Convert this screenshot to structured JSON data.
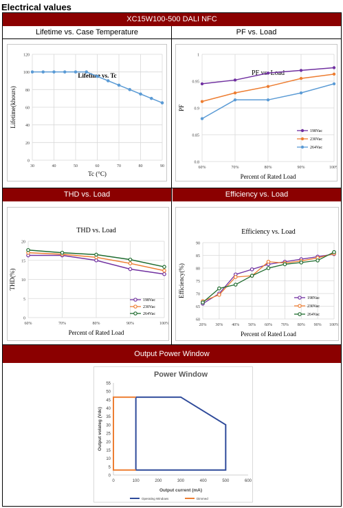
{
  "page": {
    "heading": "Electrical values",
    "product_bar": "XC15W100-500 DALI NFC",
    "sections": {
      "lifetime": "Lifetime vs. Case Temperature",
      "pf": "PF vs. Load",
      "thd": "THD vs. Load",
      "efficiency": "Efficiency vs. Load",
      "power_window": "Output Power Window"
    }
  },
  "colors": {
    "bar": "#8b0000",
    "v198": "#7030a0",
    "v230": "#ed7d31",
    "v264": "#5b9bd5",
    "v264_dark": "#1e6b2e",
    "blue": "#5b9bd5",
    "navy": "#2e4a9a"
  },
  "chart_data": [
    {
      "id": "lifetime",
      "type": "line",
      "title": "Lifetime vs. Tc",
      "xlabel": "Tc (°C)",
      "ylabel": "Lifetime(khours)",
      "xlim": [
        30,
        90
      ],
      "ylim": [
        0,
        120
      ],
      "x_ticks": [
        "30",
        "40",
        "50",
        "60",
        "70",
        "80",
        "90"
      ],
      "y_ticks": [
        "0",
        "20",
        "40",
        "60",
        "80",
        "100",
        "120"
      ],
      "grid": true,
      "series": [
        {
          "color": "#5b9bd5",
          "x": [
            30,
            35,
            40,
            45,
            50,
            55,
            60,
            65,
            70,
            75,
            80,
            85,
            90
          ],
          "y": [
            100,
            100,
            100,
            100,
            100,
            100,
            95,
            90,
            85,
            80,
            75,
            70,
            65
          ]
        }
      ]
    },
    {
      "id": "pf",
      "type": "line",
      "title": "PF vs. Load",
      "xlabel": "Percent of Rated Load",
      "ylabel": "PF",
      "categories": [
        "60%",
        "70%",
        "80%",
        "90%",
        "100%"
      ],
      "ylim": [
        0.8,
        1.0
      ],
      "y_ticks": [
        "0.8",
        "0.85",
        "0.9",
        "0.95",
        "1"
      ],
      "grid": true,
      "legend": "bottom-right",
      "series": [
        {
          "name": "198Vac",
          "color": "#7030a0",
          "values": [
            0.945,
            0.952,
            0.965,
            0.97,
            0.975
          ]
        },
        {
          "name": "230Vac",
          "color": "#ed7d31",
          "values": [
            0.912,
            0.928,
            0.94,
            0.955,
            0.963
          ]
        },
        {
          "name": "264Vac",
          "color": "#5b9bd5",
          "values": [
            0.88,
            0.915,
            0.915,
            0.928,
            0.945
          ]
        }
      ]
    },
    {
      "id": "thd",
      "type": "line",
      "title": "THD vs. Load",
      "xlabel": "Percent of Rated Load",
      "ylabel": "THD(%)",
      "categories": [
        "60%",
        "70%",
        "80%",
        "90%",
        "100%"
      ],
      "ylim": [
        0,
        20
      ],
      "y_ticks": [
        "0",
        "5",
        "10",
        "15",
        "20"
      ],
      "grid": true,
      "legend": "bottom-right",
      "series": [
        {
          "name": "198Vac",
          "color": "#7030a0",
          "values": [
            16.3,
            16.3,
            15.0,
            12.7,
            11.4
          ]
        },
        {
          "name": "230Vac",
          "color": "#ed7d31",
          "values": [
            17.0,
            16.6,
            15.8,
            14.2,
            12.3
          ]
        },
        {
          "name": "264Vac",
          "color": "#1e6b2e",
          "values": [
            17.7,
            17.0,
            16.5,
            15.2,
            13.3
          ]
        }
      ]
    },
    {
      "id": "efficiency",
      "type": "line",
      "title": "Efficiency vs. Load",
      "xlabel": "Percent of Rated Load",
      "ylabel": "Efficiency(%)",
      "categories": [
        "20%",
        "30%",
        "40%",
        "50%",
        "60%",
        "70%",
        "80%",
        "90%",
        "100%"
      ],
      "ylim": [
        60,
        90
      ],
      "y_ticks": [
        "60",
        "65",
        "70",
        "75",
        "80",
        "85",
        "90"
      ],
      "grid": true,
      "legend": "bottom-right",
      "series": [
        {
          "name": "198Vac",
          "color": "#7030a0",
          "values": [
            66,
            70,
            77.5,
            79.5,
            81.5,
            82.5,
            83.5,
            84.5,
            85.5
          ]
        },
        {
          "name": "230Vac",
          "color": "#ed7d31",
          "values": [
            67,
            69.5,
            76.5,
            77,
            82.5,
            82,
            82.8,
            84,
            85.7
          ]
        },
        {
          "name": "264Vac",
          "color": "#1e6b2e",
          "values": [
            66.5,
            72,
            73.5,
            77,
            80,
            81.5,
            82.2,
            83,
            86.3
          ]
        }
      ]
    },
    {
      "id": "power_window",
      "type": "line",
      "title": "Power Window",
      "xlabel": "Output current (mA)",
      "ylabel": "Output volateg (Vdc)",
      "xlim": [
        0,
        600
      ],
      "ylim": [
        0,
        55
      ],
      "x_ticks": [
        "0",
        "100",
        "200",
        "300",
        "400",
        "500",
        "600"
      ],
      "y_ticks": [
        "0",
        "5",
        "10",
        "15",
        "20",
        "25",
        "30",
        "35",
        "40",
        "45",
        "50",
        "55"
      ],
      "grid": false,
      "legend": "bottom",
      "series": [
        {
          "name": "Operating Windows",
          "color": "#2e4a9a",
          "x": [
            100,
            300,
            500,
            500,
            100,
            100
          ],
          "y": [
            46.5,
            46.5,
            30,
            3,
            3,
            46.5
          ]
        },
        {
          "name": "Dimmed",
          "color": "#ed7d31",
          "x": [
            100,
            0,
            0,
            100
          ],
          "y": [
            46.5,
            46.5,
            3,
            3
          ]
        }
      ]
    }
  ]
}
